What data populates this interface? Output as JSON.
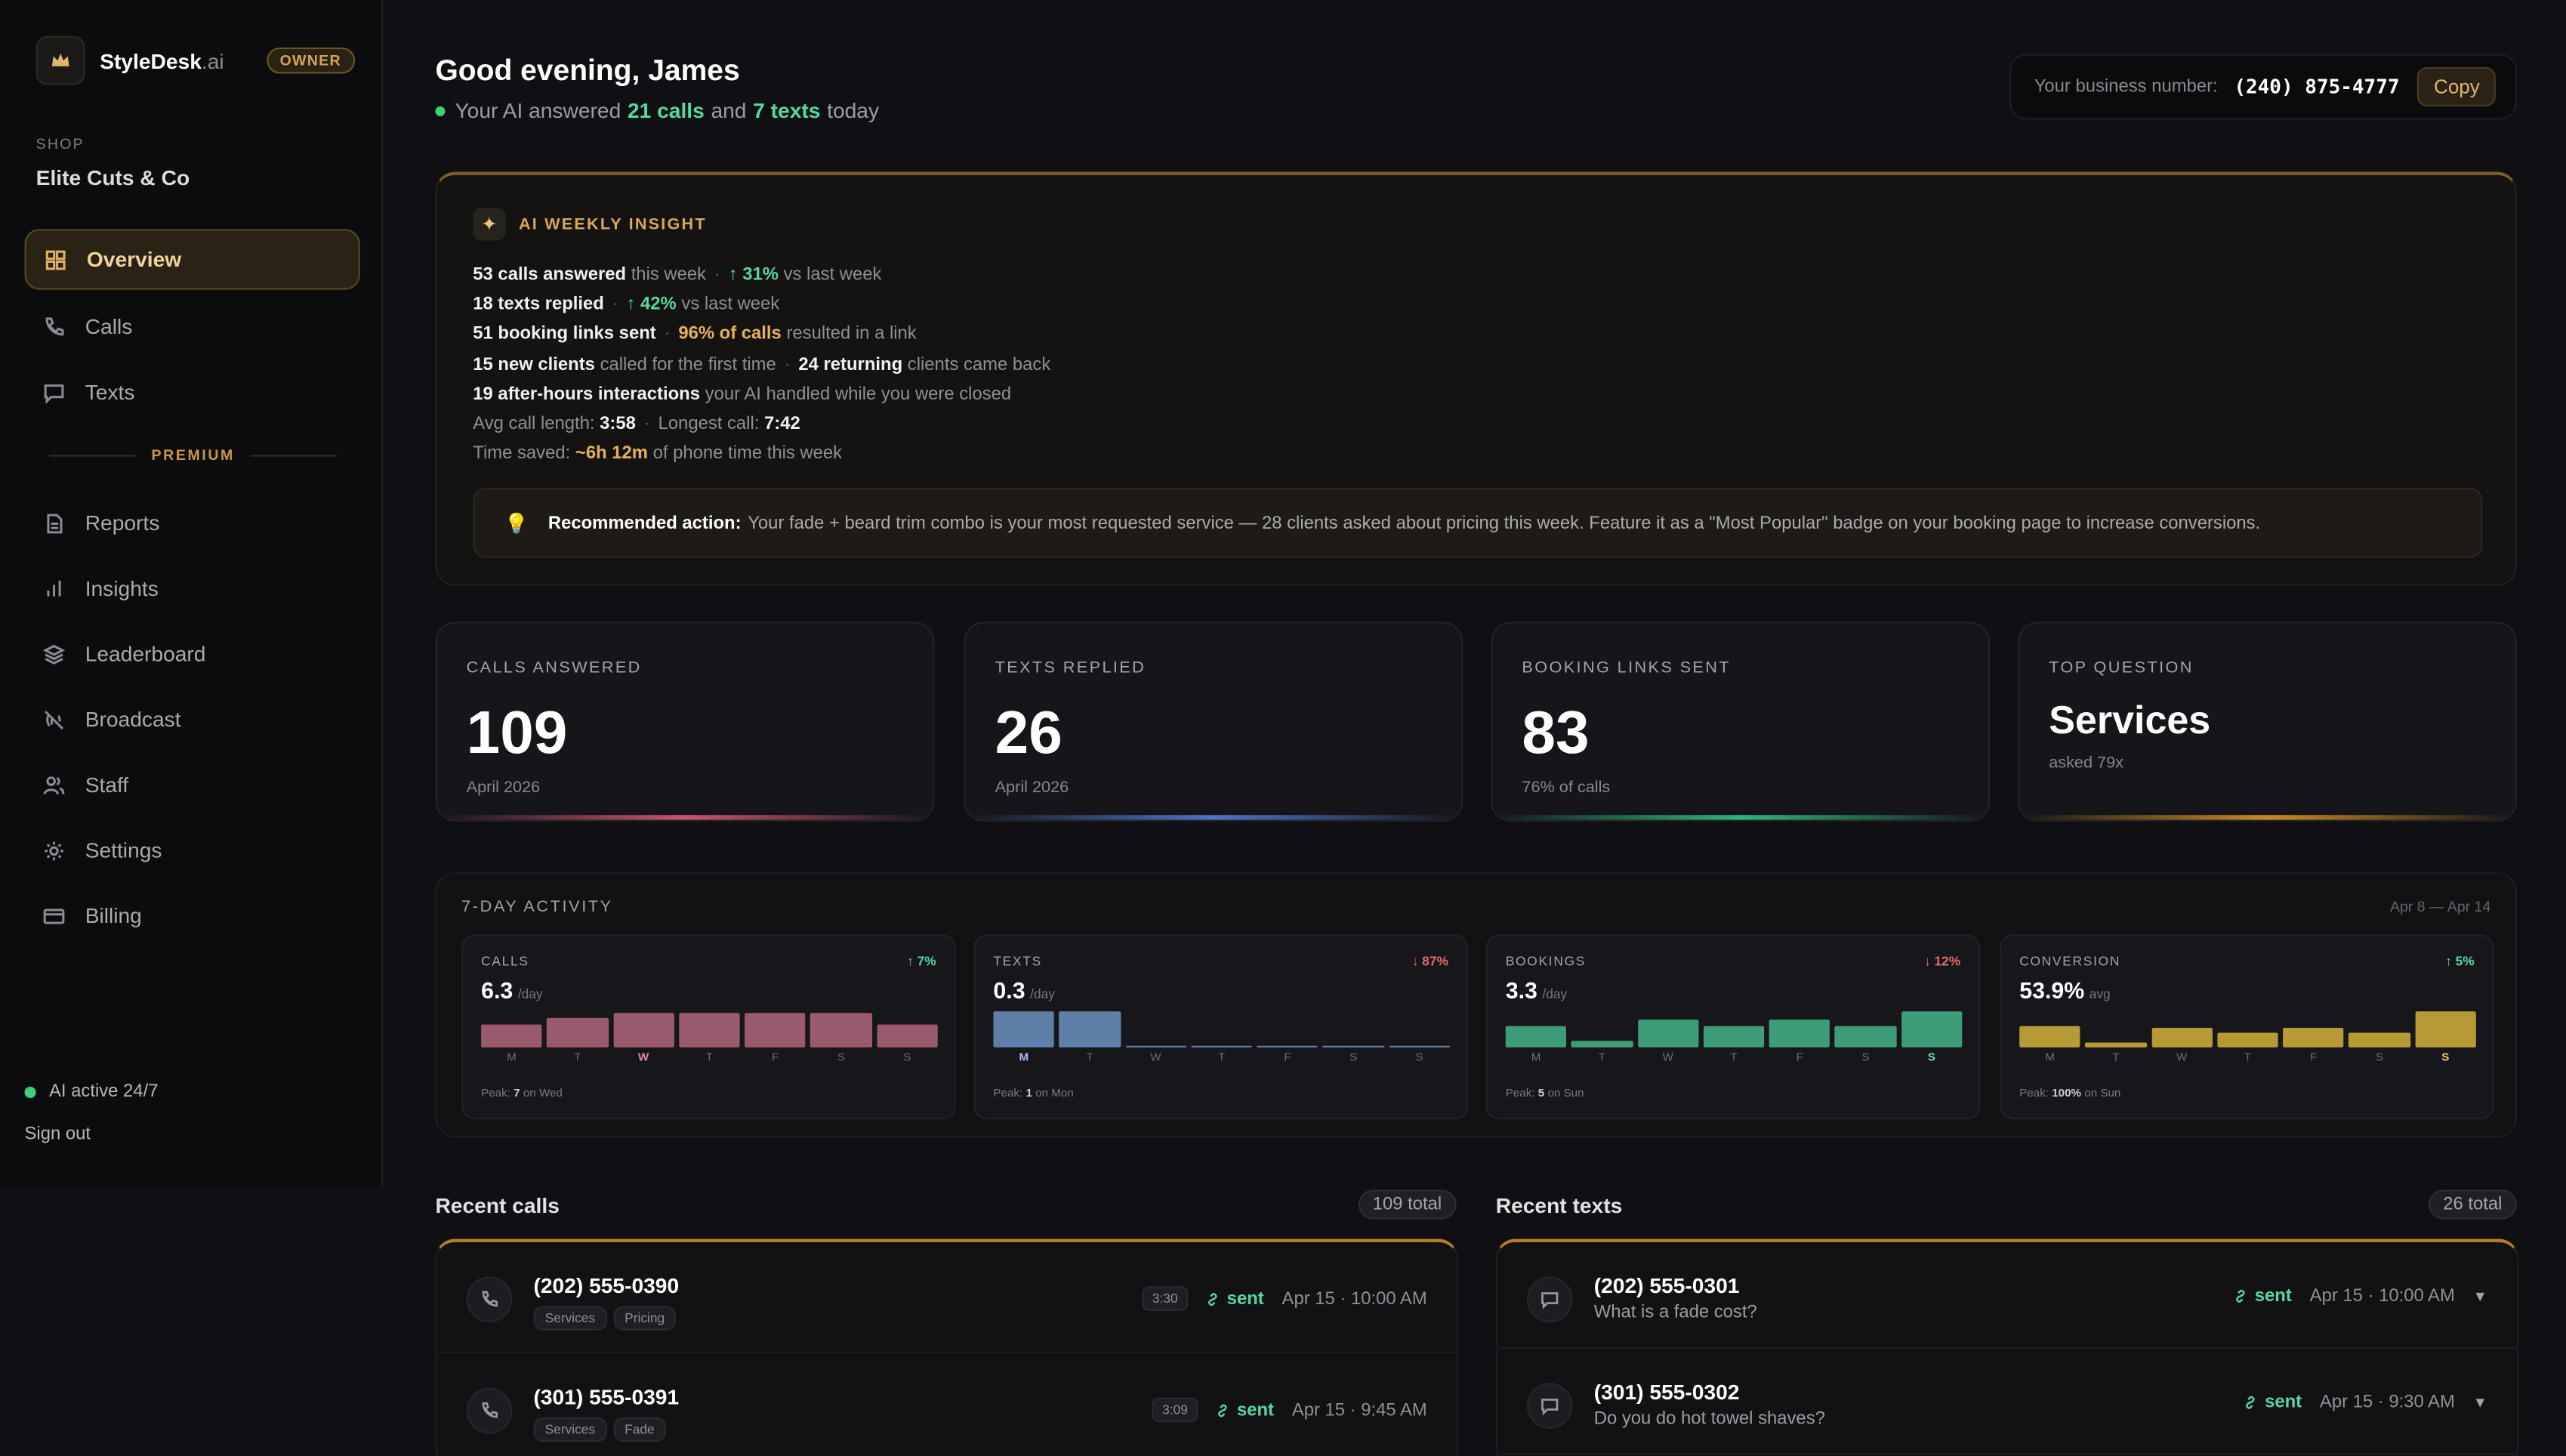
{
  "brand": {
    "name": "StyleDesk",
    "suffix": ".ai",
    "role": "OWNER"
  },
  "shop": {
    "label": "SHOP",
    "name": "Elite Cuts & Co"
  },
  "nav": [
    "Overview",
    "Calls",
    "Texts",
    "Reports",
    "Insights",
    "Leaderboard",
    "Broadcast",
    "Staff",
    "Settings",
    "Billing"
  ],
  "premium_label": "PREMIUM",
  "ai_status": "AI active 24/7",
  "sign_out": "Sign out",
  "header": {
    "greeting": "Good evening, James",
    "sub_pre": "Your AI answered",
    "calls": "21 calls",
    "and": "and",
    "texts": "7 texts",
    "sub_post": "today",
    "biz_label": "Your business number:",
    "biz_number": "(240) 875-4777",
    "copy": "Copy"
  },
  "insight": {
    "title": "AI WEEKLY INSIGHT",
    "l1a": "53 calls answered",
    "l1b": "this week",
    "l1c": "↑ 31%",
    "l1d": "vs last week",
    "l2a": "18 texts replied",
    "l2b": "↑ 42%",
    "l2c": "vs last week",
    "l3a": "51 booking links sent",
    "l3b": "96% of calls",
    "l3c": "resulted in a link",
    "l4a": "15 new clients",
    "l4b": "called for the first time",
    "l4c": "24 returning",
    "l4d": "clients came back",
    "l5a": "19 after-hours interactions",
    "l5b": "your AI handled while you were closed",
    "l6a": "Avg call length:",
    "l6b": "3:58",
    "l6c": "Longest call:",
    "l6d": "7:42",
    "l7a": "Time saved:",
    "l7b": "~6h 12m",
    "l7c": "of phone time this week",
    "reco_label": "Recommended action:",
    "reco_text": "Your fade + beard trim combo is your most requested service — 28 clients asked about pricing this week. Feature it as a \"Most Popular\" badge on your booking page to increase conversions."
  },
  "stats": [
    {
      "label": "CALLS ANSWERED",
      "value": "109",
      "foot": "April 2026"
    },
    {
      "label": "TEXTS REPLIED",
      "value": "26",
      "foot": "April 2026"
    },
    {
      "label": "BOOKING LINKS SENT",
      "value": "83",
      "foot": "76% of calls"
    },
    {
      "label": "TOP QUESTION",
      "value": "Services",
      "foot": "asked 79x"
    }
  ],
  "activity": {
    "title": "7-DAY ACTIVITY",
    "range": "Apr 8 — Apr 14",
    "days": [
      "M",
      "T",
      "W",
      "T",
      "F",
      "S",
      "S"
    ],
    "charts": [
      {
        "label": "CALLS",
        "change": "↑ 7%",
        "value": "6.3",
        "unit": "/day",
        "peak_pre": "Peak:",
        "peak_val": "7",
        "peak_post": "on Wed",
        "bars": [
          0.62,
          0.8,
          0.92,
          0.92,
          0.92,
          0.92,
          0.62
        ],
        "hl": 2,
        "color": "#9a5a6e",
        "change_color": "#5ad59e",
        "hl_color": "#e08aa4"
      },
      {
        "label": "TEXTS",
        "change": "↓ 87%",
        "value": "0.3",
        "unit": "/day",
        "peak_pre": "Peak:",
        "peak_val": "1",
        "peak_post": "on Mon",
        "bars": [
          0.95,
          0.95,
          0.06,
          0.06,
          0.06,
          0.06,
          0.06
        ],
        "hl": 0,
        "color": "#5f7ea8",
        "change_color": "#e36b6b",
        "hl_color": "#9ec0f0"
      },
      {
        "label": "BOOKINGS",
        "change": "↓ 12%",
        "value": "3.3",
        "unit": "/day",
        "peak_pre": "Peak:",
        "peak_val": "5",
        "peak_post": "on Sun",
        "bars": [
          0.55,
          0.18,
          0.75,
          0.55,
          0.75,
          0.55,
          0.95
        ],
        "hl": 6,
        "color": "#3f9c78",
        "change_color": "#e36b6b",
        "hl_color": "#6fe3b1"
      },
      {
        "label": "CONVERSION",
        "change": "↑ 5%",
        "value": "53.9%",
        "unit": "avg",
        "peak_pre": "Peak:",
        "peak_val": "100%",
        "peak_post": "on Sun",
        "bars": [
          0.55,
          0.15,
          0.5,
          0.38,
          0.5,
          0.4,
          0.95
        ],
        "hl": 6,
        "color": "#b59a36",
        "change_color": "#5ad59e",
        "hl_color": "#f0d060"
      }
    ]
  },
  "recent_calls": {
    "title": "Recent calls",
    "total": "109 total",
    "items": [
      {
        "number": "(202) 555-0390",
        "tags": [
          "Services",
          "Pricing"
        ],
        "duration": "3:30",
        "status": "sent",
        "time": "Apr 15 · 10:00 AM"
      },
      {
        "number": "(301) 555-0391",
        "tags": [
          "Services",
          "Fade"
        ],
        "duration": "3:09",
        "status": "sent",
        "time": "Apr 15 · 9:45 AM"
      }
    ]
  },
  "recent_texts": {
    "title": "Recent texts",
    "total": "26 total",
    "items": [
      {
        "number": "(202) 555-0301",
        "message": "What is a fade cost?",
        "status": "sent",
        "time": "Apr 15 · 10:00 AM"
      },
      {
        "number": "(301) 555-0302",
        "message": "Do you do hot towel shaves?",
        "status": "sent",
        "time": "Apr 15 · 9:30 AM"
      }
    ]
  },
  "colors": {
    "accent": "#d6a556",
    "green": "#5ad59e",
    "card_bars": [
      "#c4556f",
      "#4e73c4",
      "#2fb57c",
      "#c88a22"
    ]
  }
}
